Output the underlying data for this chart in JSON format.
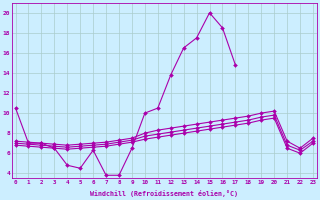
{
  "bg_color": "#cceeff",
  "grid_color": "#aacccc",
  "line_color": "#aa00aa",
  "xlabel": "Windchill (Refroidissement éolien,°C)",
  "series_spike": {
    "x": [
      0,
      1,
      2,
      3,
      4,
      5,
      6,
      7,
      8,
      9,
      10,
      11,
      12,
      13,
      14,
      15,
      16,
      17
    ],
    "y": [
      10.5,
      7.0,
      7.0,
      6.5,
      4.8,
      4.5,
      6.3,
      3.8,
      3.8,
      6.5,
      10.0,
      10.5,
      13.8,
      16.5,
      17.5,
      20.0,
      18.5,
      14.8
    ]
  },
  "series_upper": {
    "x": [
      0,
      1,
      2,
      3,
      4,
      5,
      6,
      7,
      8,
      9,
      10,
      11,
      12,
      13,
      14,
      15,
      16,
      17,
      18,
      19,
      20,
      21,
      22,
      23
    ],
    "y": [
      7.2,
      7.1,
      7.0,
      6.9,
      6.8,
      6.9,
      7.0,
      7.1,
      7.3,
      7.5,
      8.0,
      8.3,
      8.5,
      8.7,
      8.9,
      9.1,
      9.3,
      9.5,
      9.7,
      10.0,
      10.2,
      7.2,
      6.5,
      7.5
    ]
  },
  "series_mid": {
    "x": [
      0,
      1,
      2,
      3,
      4,
      5,
      6,
      7,
      8,
      9,
      10,
      11,
      12,
      13,
      14,
      15,
      16,
      17,
      18,
      19,
      20,
      21,
      22,
      23
    ],
    "y": [
      7.0,
      6.9,
      6.8,
      6.7,
      6.6,
      6.7,
      6.8,
      6.9,
      7.1,
      7.3,
      7.7,
      7.9,
      8.1,
      8.3,
      8.5,
      8.7,
      8.9,
      9.1,
      9.3,
      9.6,
      9.8,
      6.8,
      6.3,
      7.2
    ]
  },
  "series_lower": {
    "x": [
      0,
      1,
      2,
      3,
      4,
      5,
      6,
      7,
      8,
      9,
      10,
      11,
      12,
      13,
      14,
      15,
      16,
      17,
      18,
      19,
      20,
      21,
      22,
      23
    ],
    "y": [
      6.8,
      6.7,
      6.6,
      6.5,
      6.4,
      6.5,
      6.6,
      6.7,
      6.9,
      7.1,
      7.4,
      7.6,
      7.8,
      8.0,
      8.2,
      8.4,
      8.6,
      8.8,
      9.0,
      9.3,
      9.5,
      6.5,
      6.0,
      7.0
    ]
  },
  "yticks": [
    4,
    6,
    8,
    10,
    12,
    14,
    16,
    18,
    20
  ],
  "xticks": [
    0,
    1,
    2,
    3,
    4,
    5,
    6,
    7,
    8,
    9,
    10,
    11,
    12,
    13,
    14,
    15,
    16,
    17,
    18,
    19,
    20,
    21,
    22,
    23
  ],
  "ylim": [
    3.5,
    21.0
  ],
  "xlim": [
    -0.3,
    23.3
  ]
}
